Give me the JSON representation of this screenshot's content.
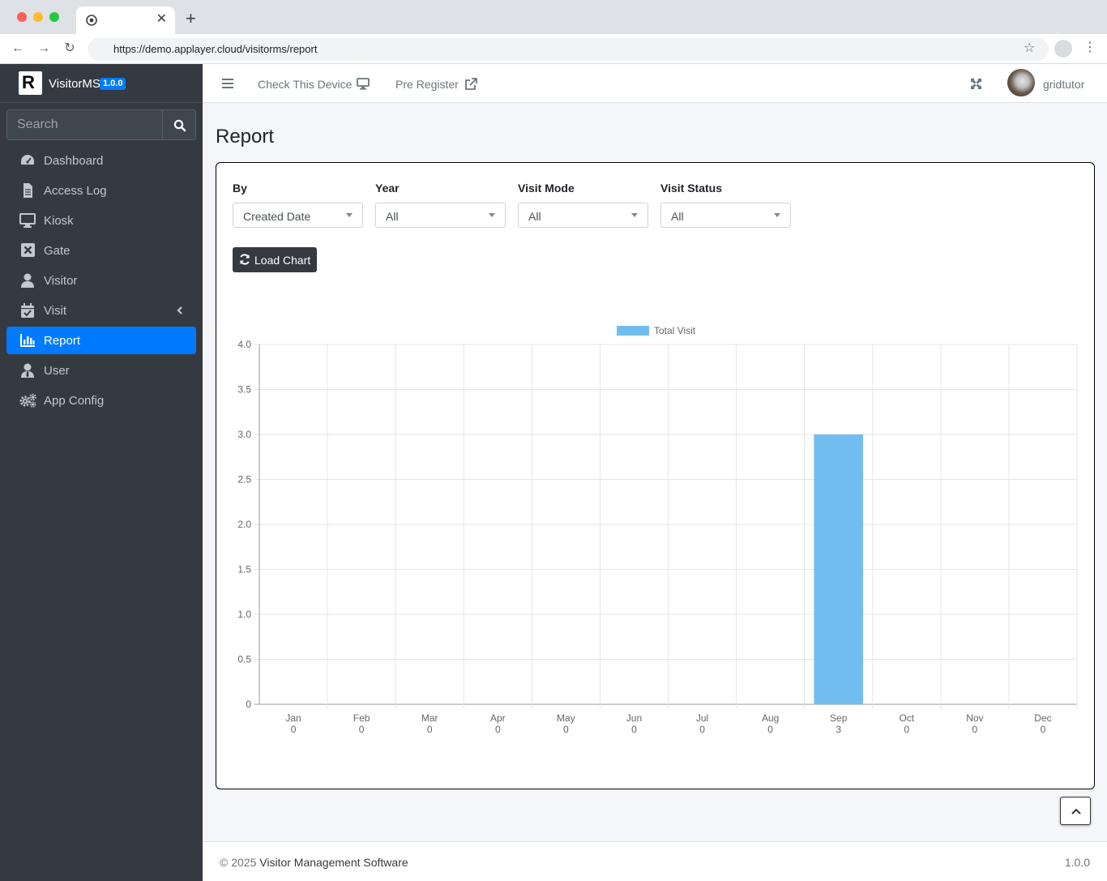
{
  "browser": {
    "url": "https://demo.applayer.cloud/visitorms/report",
    "new_tab": "+"
  },
  "brand": {
    "name": "VisitorMS",
    "version": "1.0.0"
  },
  "sidebar": {
    "search_placeholder": "Search",
    "items": [
      {
        "label": "Dashboard",
        "icon": "tachometer-icon",
        "active": false
      },
      {
        "label": "Access Log",
        "icon": "document-icon",
        "active": false
      },
      {
        "label": "Kiosk",
        "icon": "monitor-icon",
        "active": false
      },
      {
        "label": "Gate",
        "icon": "close-square-icon",
        "active": false
      },
      {
        "label": "Visitor",
        "icon": "user-icon",
        "active": false
      },
      {
        "label": "Visit",
        "icon": "calendar-check-icon",
        "active": false,
        "has_submenu": true
      },
      {
        "label": "Report",
        "icon": "bar-chart-icon",
        "active": true
      },
      {
        "label": "User",
        "icon": "user-tie-icon",
        "active": false
      },
      {
        "label": "App Config",
        "icon": "gears-icon",
        "active": false
      }
    ]
  },
  "topnav": {
    "check_device": "Check This Device",
    "pre_register": "Pre Register",
    "username": "gridtutor"
  },
  "page": {
    "title": "Report"
  },
  "filters": [
    {
      "label": "By",
      "value": "Created Date"
    },
    {
      "label": "Year",
      "value": "All"
    },
    {
      "label": "Visit Mode",
      "value": "All"
    },
    {
      "label": "Visit Status",
      "value": "All"
    }
  ],
  "load_button": "Load Chart",
  "chart_data": {
    "type": "bar",
    "categories": [
      "Jan",
      "Feb",
      "Mar",
      "Apr",
      "May",
      "Jun",
      "Jul",
      "Aug",
      "Sep",
      "Oct",
      "Nov",
      "Dec"
    ],
    "category_values_labels": [
      "0",
      "0",
      "0",
      "0",
      "0",
      "0",
      "0",
      "0",
      "3",
      "0",
      "0",
      "0"
    ],
    "series": [
      {
        "name": "Total Visit",
        "values": [
          0,
          0,
          0,
          0,
          0,
          0,
          0,
          0,
          3,
          0,
          0,
          0
        ],
        "color": "#72bdef"
      }
    ],
    "ylim": [
      0,
      4.0
    ],
    "yticks": [
      "0",
      "0.5",
      "1.0",
      "1.5",
      "2.0",
      "2.5",
      "3.0",
      "3.5",
      "4.0"
    ],
    "legend_position": "top-center",
    "grid": true
  },
  "footer": {
    "copyright": "© 2025",
    "brand": "Visitor Management Software",
    "version": "1.0.0"
  },
  "colors": {
    "sidebar_bg": "#343a40",
    "active": "#007bff",
    "bar": "#72bdef"
  }
}
